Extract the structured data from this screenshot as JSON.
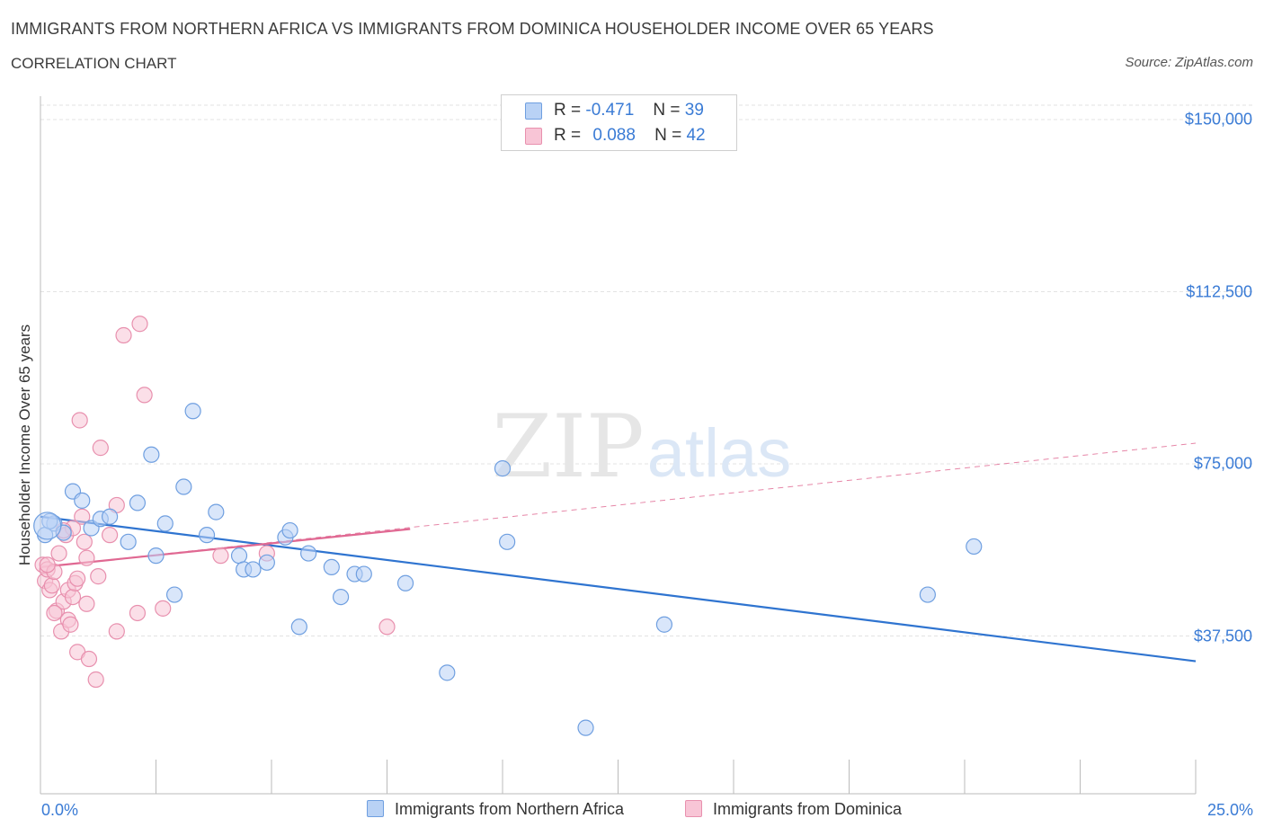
{
  "title": "IMMIGRANTS FROM NORTHERN AFRICA VS IMMIGRANTS FROM DOMINICA HOUSEHOLDER INCOME OVER 65 YEARS",
  "subtitle": "CORRELATION CHART",
  "source": "Source: ZipAtlas.com",
  "watermark": {
    "zip": "ZIP",
    "atlas": "atlas"
  },
  "legend": {
    "r_label": "R =",
    "n_label": "N =",
    "blue": {
      "r": "-0.471",
      "n": "39"
    },
    "pink": {
      "r": "0.088",
      "n": "42"
    }
  },
  "colors": {
    "blue_fill": "#b9d2f5",
    "blue_stroke": "#6f9fe0",
    "blue_line": "#2f74d0",
    "pink_fill": "#f8c5d6",
    "pink_stroke": "#e890ae",
    "pink_line": "#e06892",
    "axis_text": "#3a7bd5",
    "grid": "#e3e3e3"
  },
  "chart_data": {
    "type": "scatter",
    "title": "IMMIGRANTS FROM NORTHERN AFRICA VS IMMIGRANTS FROM DOMINICA HOUSEHOLDER INCOME OVER 65 YEARS",
    "xlabel": "",
    "ylabel": "Householder Income Over 65 years",
    "xlim": [
      0,
      25
    ],
    "ylim": [
      0,
      150000
    ],
    "x_tick_labels": [
      "0.0%",
      "25.0%"
    ],
    "y_ticks": [
      {
        "value": 150000,
        "label": "$150,000"
      },
      {
        "value": 112500,
        "label": "$112,500"
      },
      {
        "value": 75000,
        "label": "$75,000"
      },
      {
        "value": 37500,
        "label": "$37,500"
      }
    ],
    "series": [
      {
        "name": "Immigrants from Northern Africa",
        "color": "blue",
        "points": [
          [
            0.1,
            59500
          ],
          [
            0.3,
            62000
          ],
          [
            0.5,
            60000
          ],
          [
            0.7,
            69000
          ],
          [
            0.9,
            67000
          ],
          [
            1.1,
            61000
          ],
          [
            1.3,
            63000
          ],
          [
            1.5,
            63500
          ],
          [
            1.9,
            58000
          ],
          [
            2.1,
            66500
          ],
          [
            2.4,
            77000
          ],
          [
            2.5,
            55000
          ],
          [
            2.7,
            62000
          ],
          [
            2.9,
            46500
          ],
          [
            3.1,
            70000
          ],
          [
            3.3,
            86500
          ],
          [
            3.6,
            59500
          ],
          [
            3.8,
            64500
          ],
          [
            4.3,
            55000
          ],
          [
            4.4,
            52000
          ],
          [
            4.6,
            52000
          ],
          [
            4.9,
            53500
          ],
          [
            5.3,
            59000
          ],
          [
            5.4,
            60500
          ],
          [
            5.6,
            39500
          ],
          [
            5.8,
            55500
          ],
          [
            6.3,
            52500
          ],
          [
            6.5,
            46000
          ],
          [
            6.8,
            51000
          ],
          [
            7.0,
            51000
          ],
          [
            7.9,
            49000
          ],
          [
            8.8,
            29500
          ],
          [
            10.0,
            74000
          ],
          [
            10.1,
            58000
          ],
          [
            11.8,
            17500
          ],
          [
            13.5,
            40000
          ],
          [
            19.2,
            46500
          ],
          [
            20.2,
            57000
          ],
          [
            0.2,
            62500
          ]
        ],
        "trend": {
          "x": [
            0,
            25
          ],
          "y": [
            63500,
            32000
          ]
        }
      },
      {
        "name": "Immigrants from Dominica",
        "color": "pink",
        "points": [
          [
            0.05,
            53000
          ],
          [
            0.1,
            49500
          ],
          [
            0.15,
            52000
          ],
          [
            0.2,
            47500
          ],
          [
            0.25,
            48500
          ],
          [
            0.3,
            51500
          ],
          [
            0.35,
            43000
          ],
          [
            0.4,
            55500
          ],
          [
            0.45,
            38500
          ],
          [
            0.5,
            45000
          ],
          [
            0.55,
            59500
          ],
          [
            0.6,
            47500
          ],
          [
            0.6,
            41000
          ],
          [
            0.65,
            40000
          ],
          [
            0.7,
            61000
          ],
          [
            0.7,
            46000
          ],
          [
            0.75,
            49000
          ],
          [
            0.8,
            50000
          ],
          [
            0.8,
            34000
          ],
          [
            0.85,
            84500
          ],
          [
            0.9,
            63500
          ],
          [
            0.95,
            58000
          ],
          [
            1.0,
            54500
          ],
          [
            1.0,
            44500
          ],
          [
            1.05,
            32500
          ],
          [
            1.2,
            28000
          ],
          [
            1.25,
            50500
          ],
          [
            1.3,
            78500
          ],
          [
            1.5,
            59500
          ],
          [
            1.65,
            66000
          ],
          [
            1.65,
            38500
          ],
          [
            1.8,
            103000
          ],
          [
            2.1,
            42500
          ],
          [
            2.15,
            105500
          ],
          [
            2.25,
            90000
          ],
          [
            2.65,
            43500
          ],
          [
            3.9,
            55000
          ],
          [
            4.9,
            55500
          ],
          [
            7.5,
            39500
          ],
          [
            0.3,
            42500
          ],
          [
            0.5,
            60500
          ],
          [
            0.15,
            53000
          ]
        ],
        "trend": {
          "x": [
            0,
            8
          ],
          "y": [
            52500,
            60800
          ]
        },
        "trend_extended": {
          "x": [
            0,
            25
          ],
          "y": [
            52500,
            79500
          ]
        }
      }
    ]
  }
}
